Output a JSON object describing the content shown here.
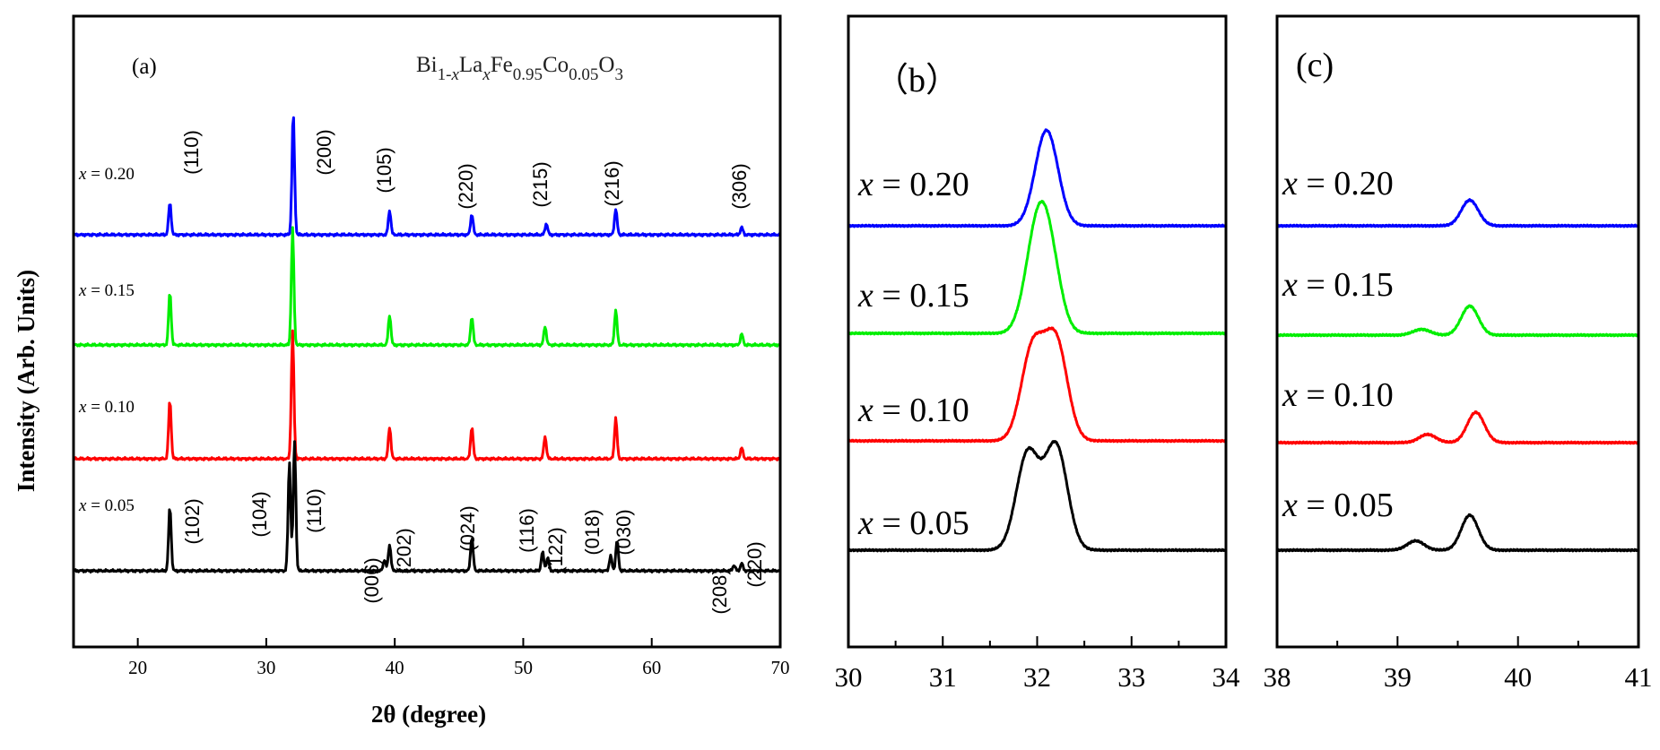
{
  "chart_data": [
    {
      "panel": "a",
      "type": "line",
      "panel_label": "(a)",
      "formula": {
        "base": "Bi",
        "sub1": "1-",
        "x1": "x",
        "mid1": "La",
        "x2": "x",
        "mid2": "Fe",
        "sub2": "0.95",
        "mid3": "Co",
        "sub3": "0.05",
        "mid4": "O",
        "sub4": "3"
      },
      "xlabel": "2θ (degree)",
      "ylabel": "Intensity (Arb. Units)",
      "xlim": [
        15,
        70
      ],
      "xticks": [
        20,
        30,
        40,
        50,
        60,
        70
      ],
      "series": [
        {
          "name": "x = 0.20",
          "prefix": "x",
          "suffix": " = 0.20",
          "color": "#0000ff",
          "peaks": [
            [
              22.5,
              0.17
            ],
            [
              32.1,
              0.65
            ],
            [
              39.6,
              0.13
            ],
            [
              46.0,
              0.11
            ],
            [
              51.8,
              0.06
            ],
            [
              57.2,
              0.14
            ],
            [
              67.0,
              0.04
            ]
          ]
        },
        {
          "name": "x = 0.15",
          "prefix": "x",
          "suffix": " = 0.15",
          "color": "#00ee00",
          "peaks": [
            [
              22.5,
              0.28
            ],
            [
              32.05,
              0.62
            ],
            [
              39.6,
              0.16
            ],
            [
              46.0,
              0.15
            ],
            [
              51.7,
              0.1
            ],
            [
              57.2,
              0.19
            ],
            [
              67.0,
              0.06
            ]
          ]
        },
        {
          "name": "x = 0.10",
          "prefix": "x",
          "suffix": " = 0.10",
          "color": "#ff0000",
          "peaks": [
            [
              22.5,
              0.31
            ],
            [
              32.05,
              0.68
            ],
            [
              39.6,
              0.17
            ],
            [
              46.0,
              0.17
            ],
            [
              51.7,
              0.12
            ],
            [
              57.2,
              0.22
            ],
            [
              67.0,
              0.06
            ]
          ]
        },
        {
          "name": "x = 0.05",
          "prefix": "x",
          "suffix": " = 0.05",
          "color": "#000000",
          "peaks": [
            [
              22.5,
              0.34
            ],
            [
              31.8,
              0.58
            ],
            [
              32.2,
              0.69
            ],
            [
              39.2,
              0.06
            ],
            [
              39.6,
              0.14
            ],
            [
              46.0,
              0.18
            ],
            [
              51.5,
              0.1
            ],
            [
              51.9,
              0.07
            ],
            [
              56.8,
              0.08
            ],
            [
              57.3,
              0.16
            ],
            [
              66.4,
              0.03
            ],
            [
              67.0,
              0.04
            ]
          ]
        }
      ],
      "annotations": {
        "top": [
          "(110)",
          "(200)",
          "(105)",
          "(220)",
          "(215)",
          "(216)",
          "(306)"
        ],
        "bottom": [
          "(102)",
          "(104)",
          "(110)",
          "(006)",
          "(202)",
          "(024)",
          "(116)",
          "(122)",
          "(018)",
          "(030)",
          "(208)",
          "(220)"
        ]
      }
    },
    {
      "panel": "b",
      "type": "line",
      "panel_label": "（b）",
      "xlim": [
        30,
        34
      ],
      "xticks": [
        30,
        31,
        32,
        33,
        34
      ],
      "series": [
        {
          "name": "x = 0.20",
          "prefix": "x",
          "suffix": " = 0.20",
          "color": "#0000ff",
          "peaks": [
            [
              32.1,
              0.82
            ]
          ]
        },
        {
          "name": "x = 0.15",
          "prefix": "x",
          "suffix": " = 0.15",
          "color": "#00ee00",
          "peaks": [
            [
              31.98,
              0.68
            ],
            [
              32.12,
              0.66
            ]
          ]
        },
        {
          "name": "x = 0.10",
          "prefix": "x",
          "suffix": " = 0.10",
          "color": "#ff0000",
          "peaks": [
            [
              31.95,
              0.78
            ],
            [
              32.2,
              0.84
            ]
          ]
        },
        {
          "name": "x = 0.05",
          "prefix": "x",
          "suffix": " = 0.05",
          "color": "#000000",
          "peaks": [
            [
              31.9,
              0.83
            ],
            [
              32.2,
              0.89
            ]
          ]
        }
      ]
    },
    {
      "panel": "c",
      "type": "line",
      "panel_label": "(c)",
      "xlim": [
        38,
        41
      ],
      "xticks": [
        38,
        39,
        40,
        41
      ],
      "series": [
        {
          "name": "x = 0.20",
          "prefix": "x",
          "suffix": " = 0.20",
          "color": "#0000ff",
          "peaks": [
            [
              39.6,
              0.22
            ]
          ]
        },
        {
          "name": "x = 0.15",
          "prefix": "x",
          "suffix": " = 0.15",
          "color": "#00ee00",
          "peaks": [
            [
              39.2,
              0.05
            ],
            [
              39.6,
              0.25
            ]
          ]
        },
        {
          "name": "x = 0.10",
          "prefix": "x",
          "suffix": " = 0.10",
          "color": "#ff0000",
          "peaks": [
            [
              39.25,
              0.07
            ],
            [
              39.65,
              0.26
            ]
          ]
        },
        {
          "name": "x = 0.05",
          "prefix": "x",
          "suffix": " = 0.05",
          "color": "#000000",
          "peaks": [
            [
              39.15,
              0.08
            ],
            [
              39.6,
              0.3
            ]
          ]
        }
      ]
    }
  ]
}
